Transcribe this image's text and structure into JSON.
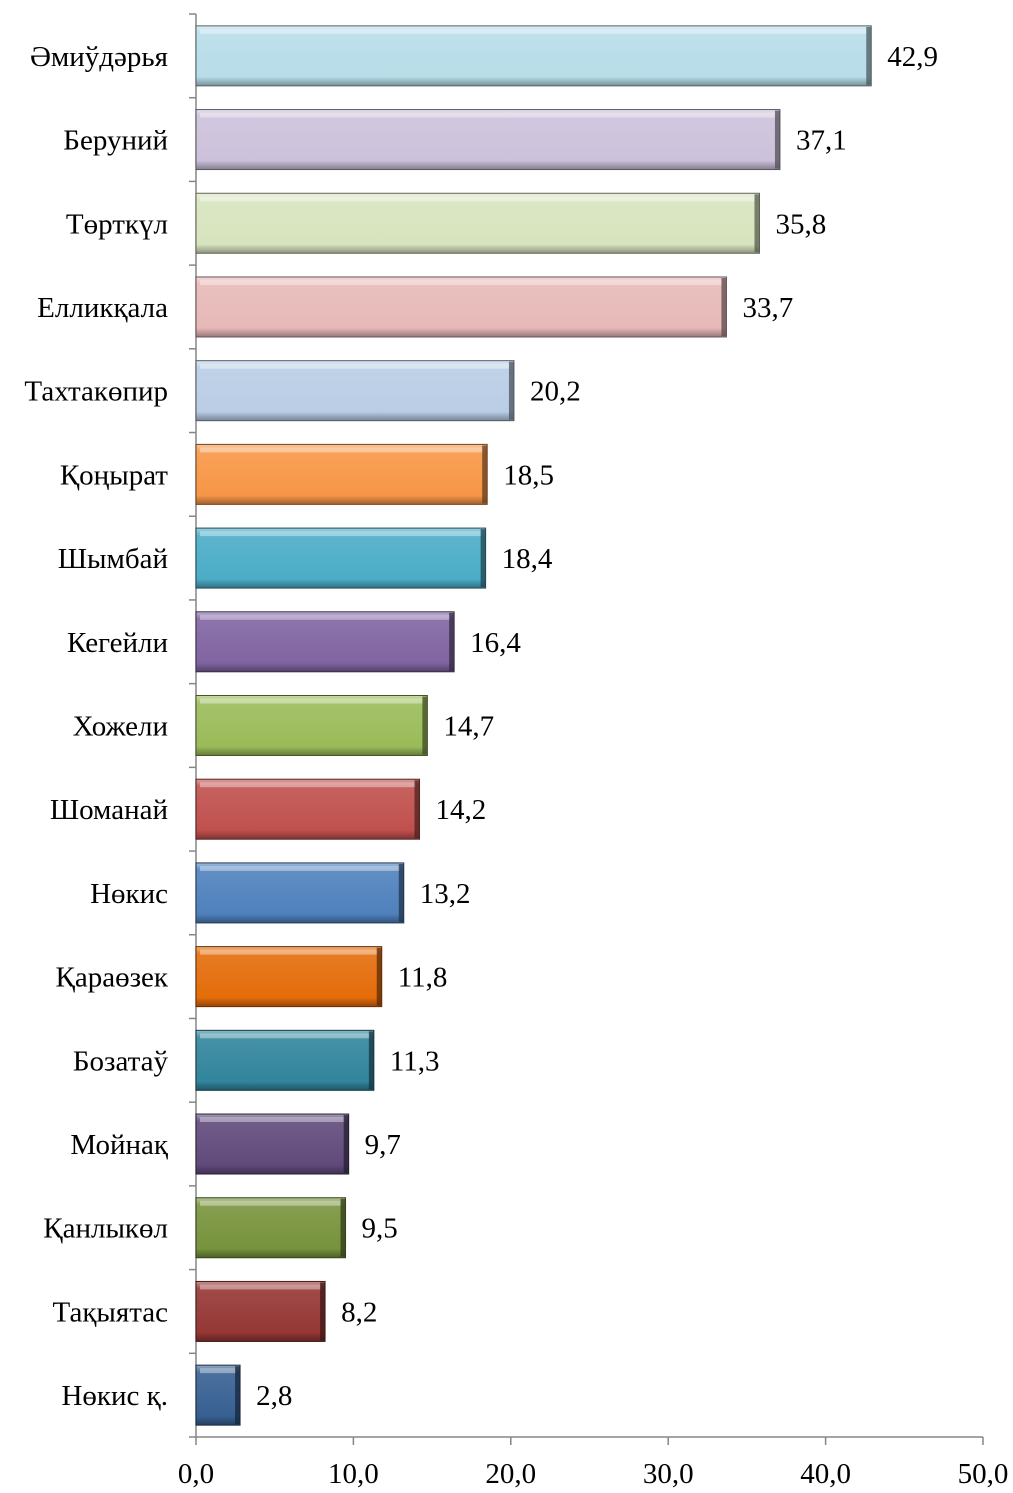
{
  "chart_data": {
    "type": "bar",
    "orientation": "horizontal",
    "title": "",
    "xlabel": "",
    "ylabel": "",
    "xlim": [
      0,
      50
    ],
    "x_ticks": [
      "0,0",
      "10,0",
      "20,0",
      "30,0",
      "40,0",
      "50,0"
    ],
    "grid": false,
    "categories": [
      "Әмиўдәрья",
      "Беруний",
      "Төрткүл",
      "Елликқала",
      "Тахтакөпир",
      "Қоңырат",
      "Шымбай",
      "Кегейли",
      "Хожели",
      "Шоманай",
      "Нөкис ",
      "Қараөзек",
      "Бозатаў",
      "Мойнақ",
      "Қанлыкөл",
      "Тақыятас",
      "Нөкис қ."
    ],
    "values": [
      42.9,
      37.1,
      35.8,
      33.7,
      20.2,
      18.5,
      18.4,
      16.4,
      14.7,
      14.2,
      13.2,
      11.8,
      11.3,
      9.7,
      9.5,
      8.2,
      2.8
    ],
    "value_labels": [
      "42,9",
      "37,1",
      "35,8",
      "33,7",
      "20,2",
      "18,5",
      "18,4",
      "16,4",
      "14,7",
      "14,2",
      "13,2",
      "11,8",
      "11,3",
      "9,7",
      "9,5",
      "8,2",
      "2,8"
    ],
    "colors": [
      "#b7dde8",
      "#ccc1da",
      "#d7e4bd",
      "#e6b9b8",
      "#b9cde5",
      "#f79646",
      "#4bacc6",
      "#8064a2",
      "#9bbb59",
      "#c0504d",
      "#4f81bd",
      "#e46c0a",
      "#31859c",
      "#604a7b",
      "#77933c",
      "#953735",
      "#376092"
    ]
  }
}
